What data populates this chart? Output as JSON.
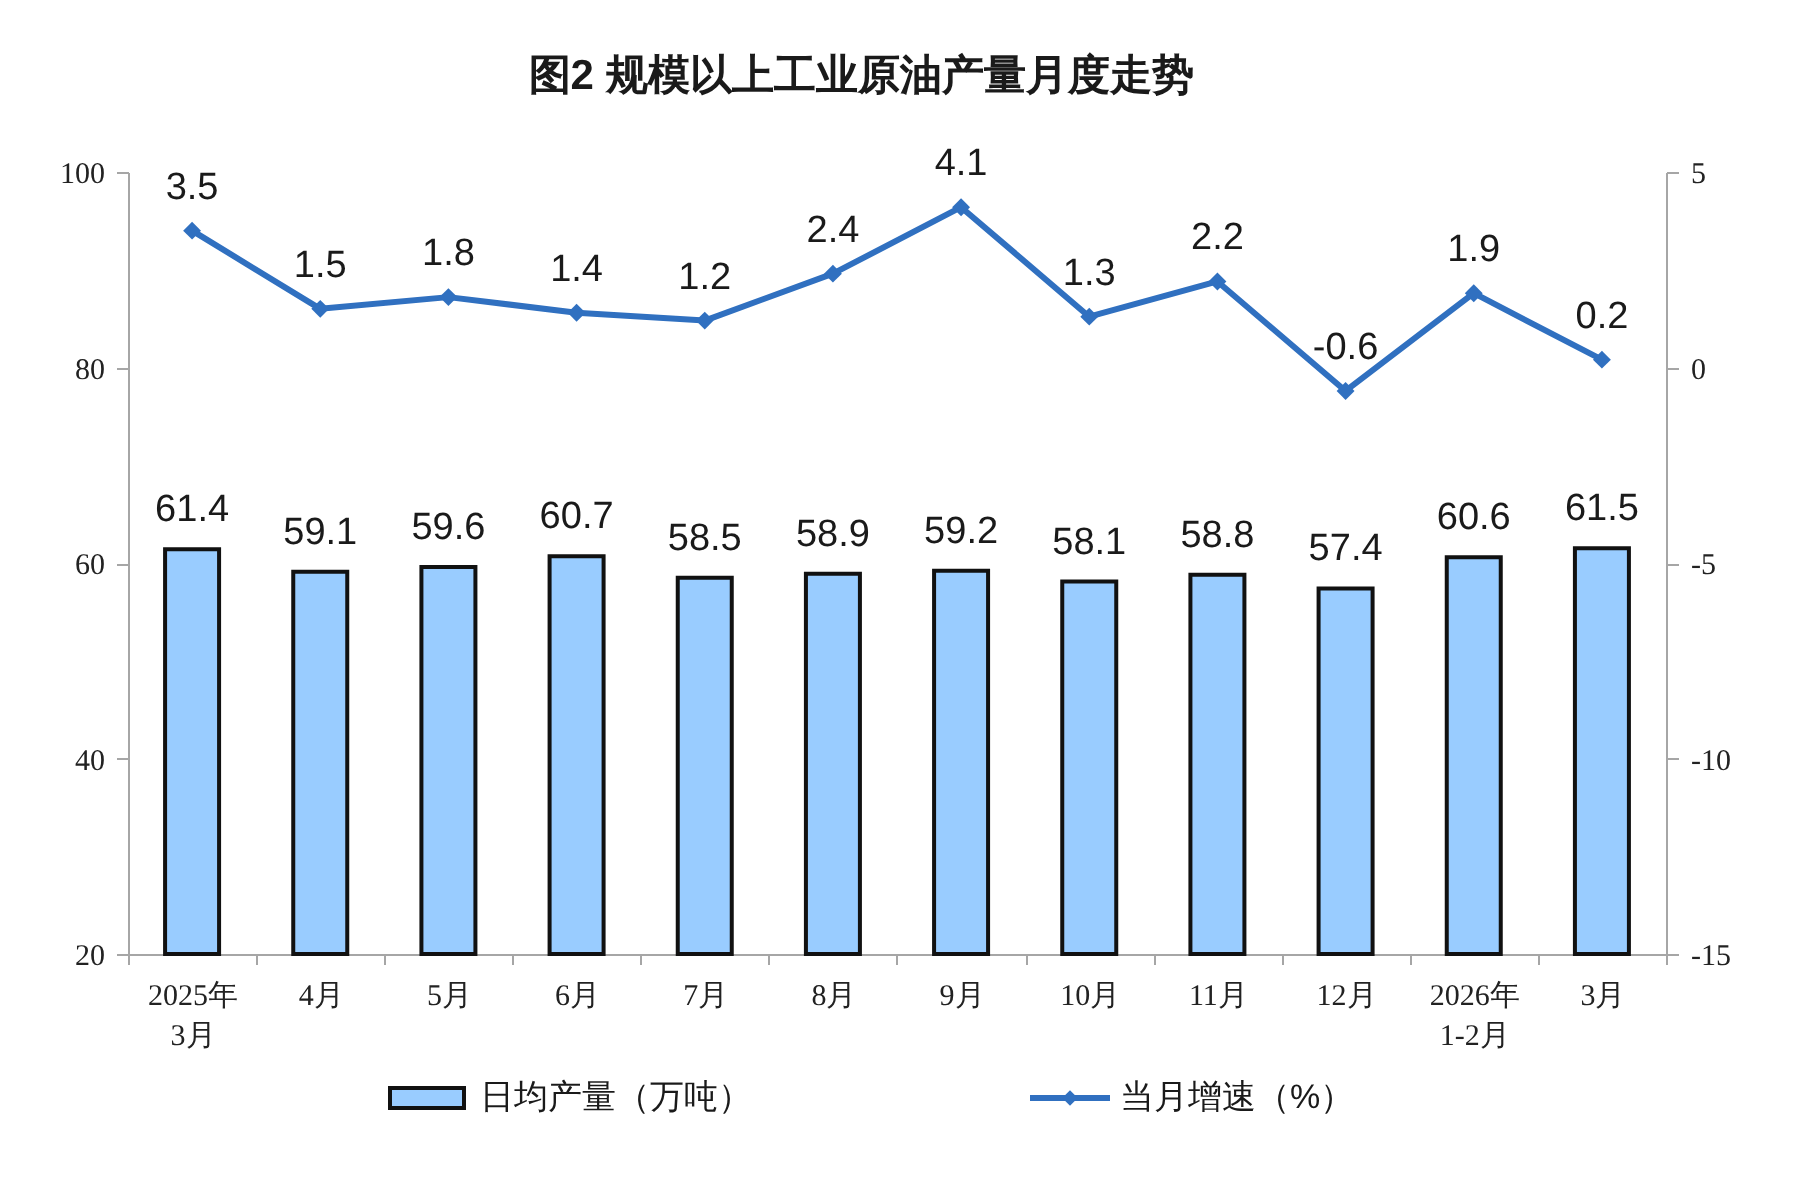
{
  "chart_data": {
    "type": "bar",
    "title": "图2 规模以上工业原油产量月度走势",
    "categories": [
      "2025年\n3月",
      "4月",
      "5月",
      "6月",
      "7月",
      "8月",
      "9月",
      "10月",
      "11月",
      "12月",
      "2026年\n1-2月",
      "3月"
    ],
    "series": [
      {
        "name": "日均产量（万吨）",
        "color": "#99ccff",
        "values": [
          61.4,
          59.1,
          59.6,
          60.7,
          58.5,
          58.9,
          59.2,
          58.1,
          58.8,
          57.4,
          60.6,
          61.5
        ]
      },
      {
        "name": "当月增速（%）",
        "type": "line",
        "axis": "y2",
        "color": "#3070c0",
        "marker": "diamond",
        "values": [
          3.5,
          1.5,
          1.8,
          1.4,
          1.2,
          2.4,
          4.1,
          1.3,
          2.2,
          -0.6,
          1.9,
          0.2
        ]
      }
    ],
    "ylim": [
      20,
      100
    ],
    "yticks": [
      20,
      40,
      60,
      80,
      100
    ],
    "y2lim": [
      -15,
      5
    ],
    "y2ticks": [
      -15,
      -10,
      -5,
      0,
      5
    ],
    "data_labels": true,
    "legend": "bottom"
  }
}
